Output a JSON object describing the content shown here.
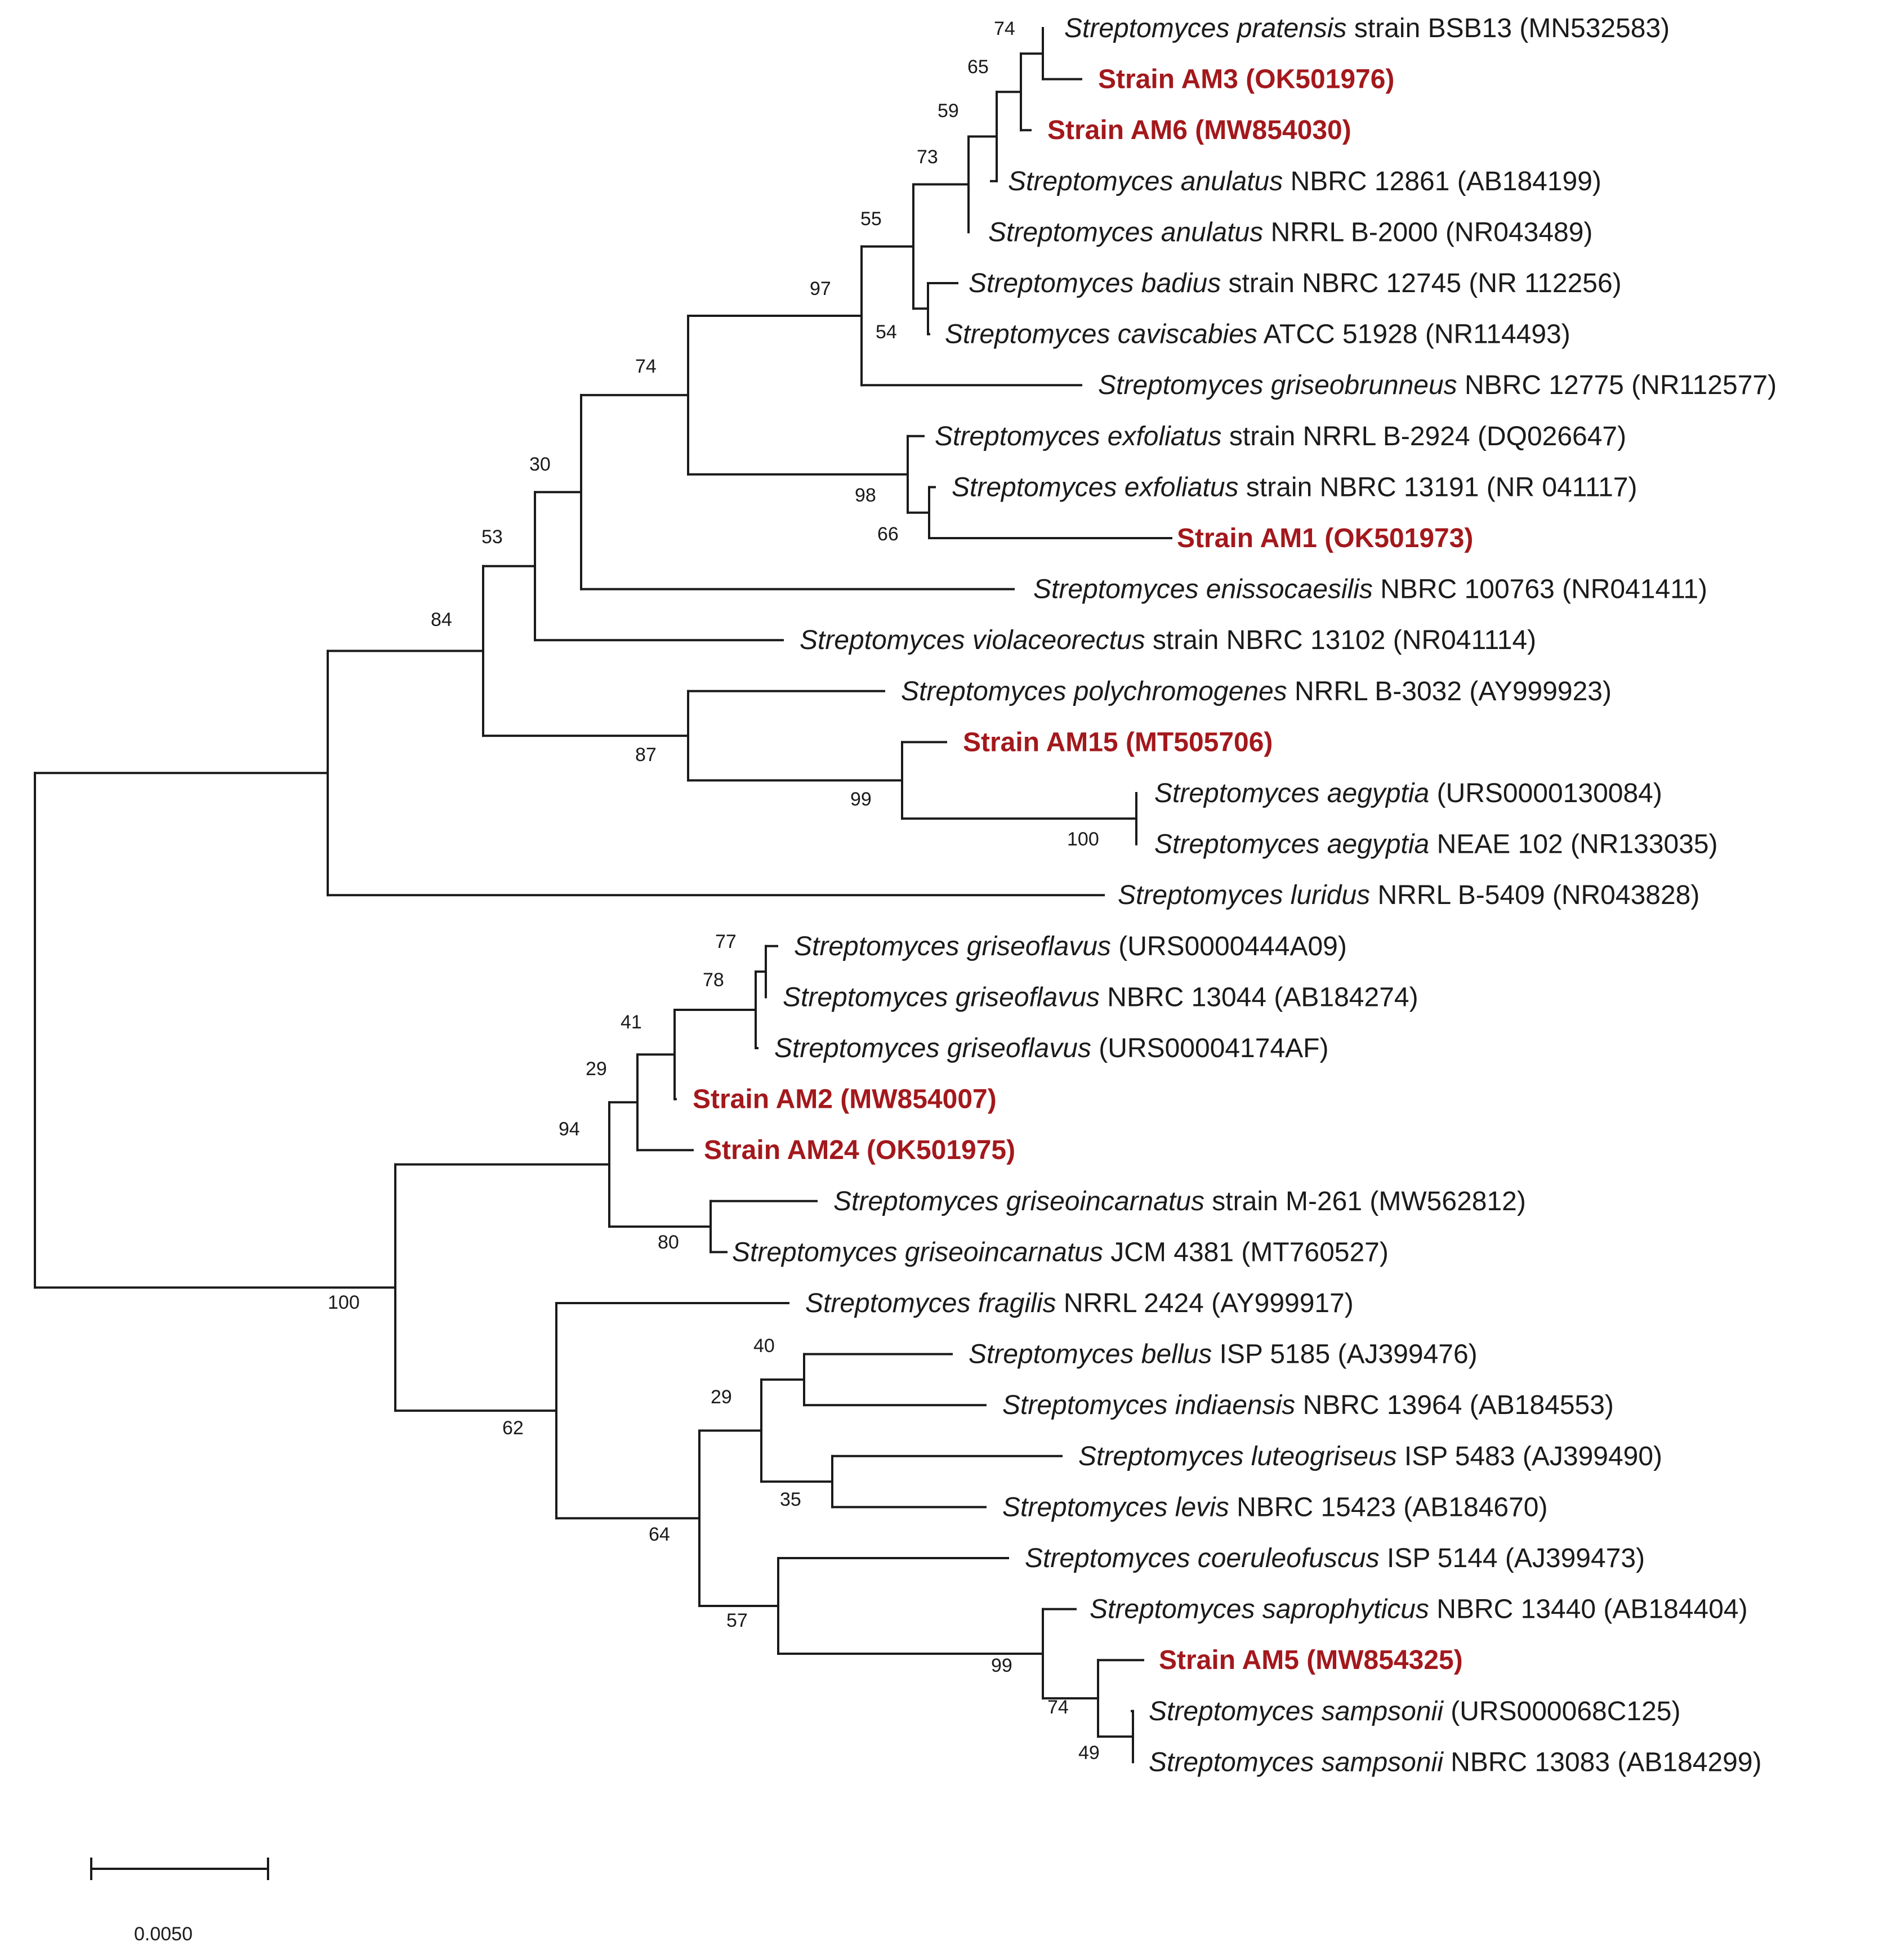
{
  "figure": {
    "type": "phylogenetic-tree",
    "highlight_color": "#a3181c",
    "line_color": "#1a1a1a"
  },
  "scale_bar": {
    "label": "0.0050"
  },
  "leaves": [
    {
      "genus": "Streptomyces",
      "species": "pratensis",
      "rest": "strain BSB13 (MN532583)",
      "highlight": false
    },
    {
      "label": "Strain AM3 (OK501976)",
      "highlight": true
    },
    {
      "label": "Strain AM6 (MW854030)",
      "highlight": true
    },
    {
      "genus": "Streptomyces",
      "species": "anulatus",
      "rest": "NBRC 12861 (AB184199)",
      "highlight": false
    },
    {
      "genus": "Streptomyces",
      "species": "anulatus",
      "rest": "NRRL B-2000 (NR043489)",
      "highlight": false
    },
    {
      "genus": "Streptomyces",
      "species": "badius",
      "rest": "strain NBRC 12745 (NR 112256)",
      "highlight": false
    },
    {
      "genus": "Streptomyces",
      "species": "caviscabies",
      "rest": "ATCC 51928 (NR114493)",
      "highlight": false
    },
    {
      "genus": "Streptomyces",
      "species": "griseobrunneus",
      "rest": "NBRC 12775 (NR112577)",
      "highlight": false
    },
    {
      "genus": "Streptomyces",
      "species": "exfoliatus",
      "rest": "strain NRRL B-2924 (DQ026647)",
      "highlight": false
    },
    {
      "genus": "Streptomyces",
      "species": "exfoliatus",
      "rest": "strain NBRC 13191 (NR 041117)",
      "highlight": false
    },
    {
      "label": "Strain AM1 (OK501973)",
      "highlight": true
    },
    {
      "genus": "Streptomyces",
      "species": "enissocaesilis",
      "rest": "NBRC 100763 (NR041411)",
      "highlight": false
    },
    {
      "genus": "Streptomyces",
      "species": "violaceorectus",
      "rest": "strain NBRC 13102 (NR041114)",
      "highlight": false
    },
    {
      "genus": "Streptomyces",
      "species": "polychromogenes",
      "rest": "NRRL B-3032 (AY999923)",
      "highlight": false
    },
    {
      "label": "Strain AM15 (MT505706)",
      "highlight": true
    },
    {
      "genus": "Streptomyces",
      "species": "aegyptia",
      "rest": "(URS0000130084)",
      "highlight": false
    },
    {
      "genus": "Streptomyces",
      "species": "aegyptia",
      "rest": "NEAE 102 (NR133035)",
      "highlight": false
    },
    {
      "genus": "Streptomyces",
      "species": "luridus",
      "rest": "NRRL B-5409 (NR043828)",
      "highlight": false
    },
    {
      "genus": "Streptomyces",
      "species": "griseoflavus",
      "rest": "(URS0000444A09)",
      "highlight": false
    },
    {
      "genus": "Streptomyces",
      "species": "griseoflavus",
      "rest": "NBRC 13044 (AB184274)",
      "highlight": false
    },
    {
      "genus": "Streptomyces",
      "species": "griseoflavus",
      "rest": "(URS00004174AF)",
      "highlight": false
    },
    {
      "label": "Strain AM2 (MW854007)",
      "highlight": true
    },
    {
      "label": "Strain AM24 (OK501975)",
      "highlight": true
    },
    {
      "genus": "Streptomyces",
      "species": "griseoincarnatus",
      "rest": "strain M-261 (MW562812)",
      "highlight": false
    },
    {
      "genus": "Streptomyces",
      "species": "griseoincarnatus",
      "rest": "JCM 4381 (MT760527)",
      "highlight": false
    },
    {
      "genus": "Streptomyces",
      "species": "fragilis",
      "rest": "NRRL 2424 (AY999917)",
      "highlight": false
    },
    {
      "genus": "Streptomyces",
      "species": "bellus",
      "rest": "ISP 5185 (AJ399476)",
      "highlight": false
    },
    {
      "genus": "Streptomyces",
      "species": "indiaensis",
      "rest": "NBRC 13964 (AB184553)",
      "highlight": false
    },
    {
      "genus": "Streptomyces",
      "species": "luteogriseus",
      "rest": "ISP 5483 (AJ399490)",
      "highlight": false
    },
    {
      "genus": "Streptomyces",
      "species": "levis",
      "rest": "NBRC 15423 (AB184670)",
      "highlight": false
    },
    {
      "genus": "Streptomyces",
      "species": "coeruleofuscus",
      "rest": "ISP 5144 (AJ399473)",
      "highlight": false
    },
    {
      "genus": "Streptomyces",
      "species": "saprophyticus",
      "rest": "NBRC 13440 (AB184404)",
      "highlight": false
    },
    {
      "label": "Strain AM5 (MW854325)",
      "highlight": true
    },
    {
      "genus": "Streptomyces",
      "species": "sampsonii",
      "rest": "(URS000068C125)",
      "highlight": false
    },
    {
      "genus": "Streptomyces",
      "species": "sampsonii",
      "rest": "NBRC 13083 (AB184299)",
      "highlight": false
    }
  ],
  "bootstrap_values": [
    "74",
    "65",
    "59",
    "73",
    "55",
    "54",
    "97",
    "74",
    "98",
    "66",
    "30",
    "53",
    "84",
    "87",
    "99",
    "100",
    "77",
    "78",
    "41",
    "29",
    "94",
    "80",
    "100",
    "62",
    "40",
    "29",
    "35",
    "64",
    "57",
    "99",
    "74",
    "49"
  ]
}
